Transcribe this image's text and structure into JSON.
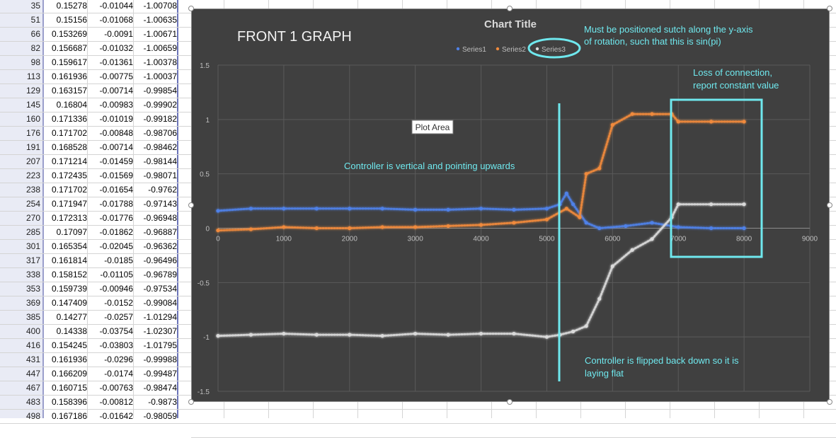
{
  "sheet": {
    "rows": [
      [
        "35",
        "0.15278",
        "-0.01044",
        "-1.00708"
      ],
      [
        "51",
        "0.15156",
        "-0.01068",
        "-1.00635"
      ],
      [
        "66",
        "0.153269",
        "-0.0091",
        "-1.00671"
      ],
      [
        "82",
        "0.156687",
        "-0.01032",
        "-1.00659"
      ],
      [
        "98",
        "0.159617",
        "-0.01361",
        "-1.00378"
      ],
      [
        "113",
        "0.161936",
        "-0.00775",
        "-1.00037"
      ],
      [
        "129",
        "0.163157",
        "-0.00714",
        "-0.99854"
      ],
      [
        "145",
        "0.16804",
        "-0.00983",
        "-0.99902"
      ],
      [
        "160",
        "0.171336",
        "-0.01019",
        "-0.99182"
      ],
      [
        "176",
        "0.171702",
        "-0.00848",
        "-0.98706"
      ],
      [
        "191",
        "0.168528",
        "-0.00714",
        "-0.98462"
      ],
      [
        "207",
        "0.171214",
        "-0.01459",
        "-0.98144"
      ],
      [
        "223",
        "0.172435",
        "-0.01569",
        "-0.98071"
      ],
      [
        "238",
        "0.171702",
        "-0.01654",
        "-0.9762"
      ],
      [
        "254",
        "0.171947",
        "-0.01788",
        "-0.97143"
      ],
      [
        "270",
        "0.172313",
        "-0.01776",
        "-0.96948"
      ],
      [
        "285",
        "0.17097",
        "-0.01862",
        "-0.96887"
      ],
      [
        "301",
        "0.165354",
        "-0.02045",
        "-0.96362"
      ],
      [
        "317",
        "0.161814",
        "-0.0185",
        "-0.96496"
      ],
      [
        "338",
        "0.158152",
        "-0.01105",
        "-0.96789"
      ],
      [
        "353",
        "0.159739",
        "-0.00946",
        "-0.97534"
      ],
      [
        "369",
        "0.147409",
        "-0.0152",
        "-0.99084"
      ],
      [
        "385",
        "0.14277",
        "-0.0257",
        "-1.01294"
      ],
      [
        "400",
        "0.14338",
        "-0.03754",
        "-1.02307"
      ],
      [
        "416",
        "0.154245",
        "-0.03803",
        "-1.01795"
      ],
      [
        "431",
        "0.161936",
        "-0.0296",
        "-0.99988"
      ],
      [
        "447",
        "0.166209",
        "-0.0174",
        "-0.99487"
      ],
      [
        "467",
        "0.160715",
        "-0.00763",
        "-0.98474"
      ],
      [
        "483",
        "0.158396",
        "-0.00812",
        "-0.9873"
      ],
      [
        "498",
        "0.167186",
        "-0.01642",
        "-0.98059"
      ]
    ]
  },
  "chart_data": {
    "type": "scatter",
    "title": "Chart Title",
    "xlim": [
      0,
      9000
    ],
    "ylim": [
      -1.5,
      1.5
    ],
    "x_ticks": [
      "0",
      "1000",
      "2000",
      "3000",
      "4000",
      "5000",
      "6000",
      "7000",
      "8000",
      "9000"
    ],
    "y_ticks": [
      "1.5",
      "1",
      "0.5",
      "0",
      "-0.5",
      "-1",
      "-1.5"
    ],
    "grid": true,
    "legend_position": "top",
    "series": [
      {
        "name": "Series1",
        "color": "#4f81e8",
        "points": [
          [
            0,
            0.16
          ],
          [
            500,
            0.18
          ],
          [
            1000,
            0.18
          ],
          [
            1500,
            0.18
          ],
          [
            2000,
            0.18
          ],
          [
            2500,
            0.18
          ],
          [
            3000,
            0.17
          ],
          [
            3500,
            0.17
          ],
          [
            4000,
            0.18
          ],
          [
            4500,
            0.17
          ],
          [
            5000,
            0.18
          ],
          [
            5200,
            0.22
          ],
          [
            5300,
            0.32
          ],
          [
            5400,
            0.22
          ],
          [
            5600,
            0.05
          ],
          [
            5800,
            0.0
          ],
          [
            6200,
            0.02
          ],
          [
            6600,
            0.05
          ],
          [
            7000,
            0.01
          ],
          [
            7500,
            0.0
          ],
          [
            8000,
            0.0
          ]
        ]
      },
      {
        "name": "Series2",
        "color": "#f08a3c",
        "points": [
          [
            0,
            -0.02
          ],
          [
            500,
            -0.01
          ],
          [
            1000,
            0.01
          ],
          [
            1500,
            0.0
          ],
          [
            2000,
            0.0
          ],
          [
            2500,
            0.01
          ],
          [
            3000,
            0.01
          ],
          [
            3500,
            0.02
          ],
          [
            4000,
            0.03
          ],
          [
            4500,
            0.05
          ],
          [
            5000,
            0.08
          ],
          [
            5300,
            0.18
          ],
          [
            5500,
            0.1
          ],
          [
            5600,
            0.5
          ],
          [
            5800,
            0.55
          ],
          [
            6000,
            0.95
          ],
          [
            6300,
            1.05
          ],
          [
            6600,
            1.05
          ],
          [
            6900,
            1.05
          ],
          [
            7000,
            0.98
          ],
          [
            7500,
            0.98
          ],
          [
            8000,
            0.98
          ]
        ]
      },
      {
        "name": "Series3",
        "color": "#d9d9d9",
        "points": [
          [
            0,
            -0.99
          ],
          [
            500,
            -0.98
          ],
          [
            1000,
            -0.97
          ],
          [
            1500,
            -0.98
          ],
          [
            2000,
            -0.98
          ],
          [
            2500,
            -0.99
          ],
          [
            3000,
            -0.97
          ],
          [
            3500,
            -0.98
          ],
          [
            4000,
            -0.97
          ],
          [
            4500,
            -0.97
          ],
          [
            5000,
            -1.0
          ],
          [
            5200,
            -0.98
          ],
          [
            5400,
            -0.95
          ],
          [
            5600,
            -0.9
          ],
          [
            5800,
            -0.65
          ],
          [
            6000,
            -0.35
          ],
          [
            6300,
            -0.2
          ],
          [
            6600,
            -0.1
          ],
          [
            6900,
            0.1
          ],
          [
            7000,
            0.22
          ],
          [
            7500,
            0.22
          ],
          [
            8000,
            0.22
          ]
        ]
      }
    ]
  },
  "annotations": {
    "front_label": "FRONT 1 GRAPH",
    "plot_area_tooltip": "Plot Area",
    "note_vertical": "Controller is vertical and pointing upwards",
    "note_flipped_1": "Controller is flipped back down so it is",
    "note_flipped_2": "laying flat",
    "note_axis_1": "Must be positioned sutch along the y-axis",
    "note_axis_2": "of rotation, such that this is sin(pi)",
    "note_loss_1": "Loss of connection,",
    "note_loss_2": "report constant value",
    "accent_color": "#6fe8ee"
  }
}
